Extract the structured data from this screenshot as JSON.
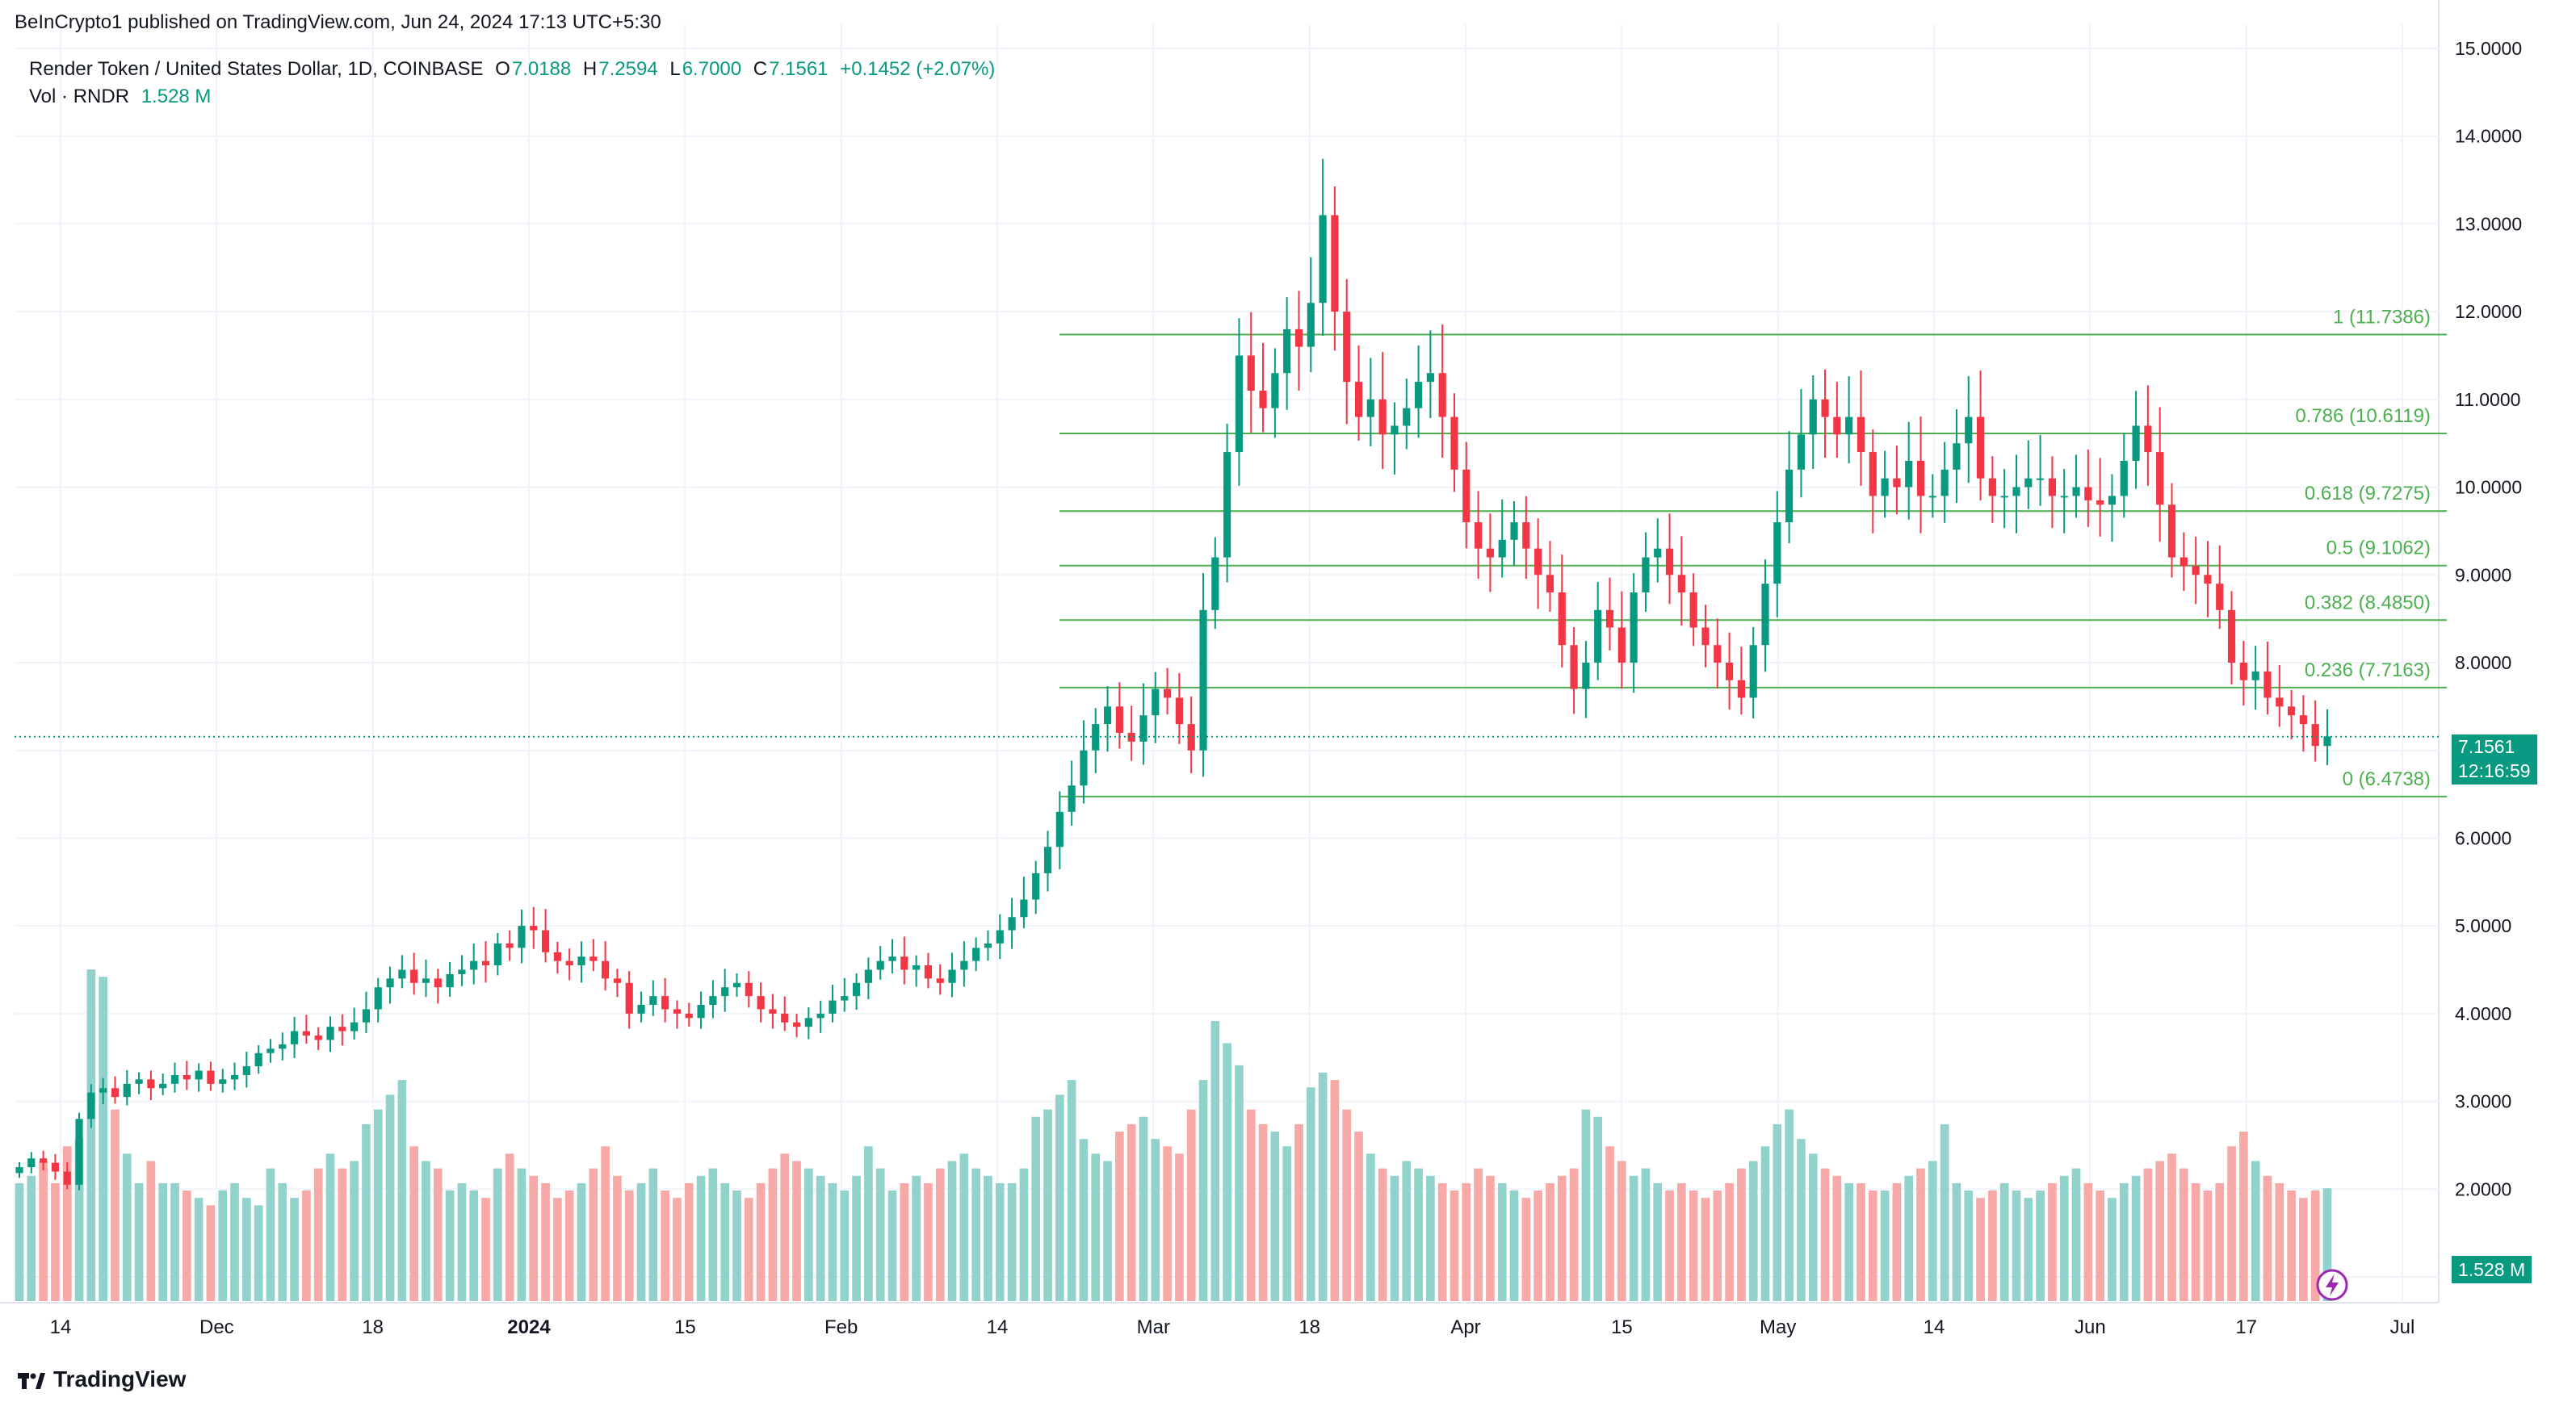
{
  "header": {
    "publish_line": "BeInCrypto1 published on TradingView.com, Jun 24, 2024 17:13 UTC+5:30",
    "symbol": "Render Token / United States Dollar, 1D, COINBASE",
    "open_label": "O",
    "open": "7.0188",
    "high_label": "H",
    "high": "7.2594",
    "low_label": "L",
    "low": "6.7000",
    "close_label": "C",
    "close": "7.1561",
    "change": "+0.1452 (+2.07%)",
    "vol_label": "Vol · RNDR",
    "vol_value": "1.528 M"
  },
  "price_badge": {
    "price": "7.1561",
    "countdown": "12:16:59"
  },
  "volume_badge": "1.528 M",
  "footer": {
    "brand": "TradingView"
  },
  "colors": {
    "up": "#089981",
    "down": "#f23645",
    "fib": "#4caf50",
    "up_vol": "#92d2cc",
    "down_vol": "#f7a9a7"
  },
  "chart_data": {
    "type": "candlestick",
    "y_axis": {
      "ticks": [
        "15.0000",
        "14.0000",
        "13.0000",
        "12.0000",
        "11.0000",
        "10.0000",
        "9.0000",
        "8.0000",
        "7.0000",
        "6.0000",
        "5.0000",
        "4.0000",
        "3.0000",
        "2.0000",
        "1.0000"
      ],
      "ylim": [
        1.0,
        15.0
      ]
    },
    "x_axis": {
      "ticks": [
        "14",
        "Dec",
        "18",
        "2024",
        "15",
        "Feb",
        "14",
        "Mar",
        "18",
        "Apr",
        "15",
        "May",
        "14",
        "Jun",
        "17",
        "Jul"
      ],
      "bold_tick": "2024"
    },
    "fibonacci": [
      {
        "label": "1 (11.7386)",
        "value": 11.7386
      },
      {
        "label": "0.786 (10.6119)",
        "value": 10.6119
      },
      {
        "label": "0.618 (9.7275)",
        "value": 9.7275
      },
      {
        "label": "0.5 (9.1062)",
        "value": 9.1062
      },
      {
        "label": "0.382 (8.4850)",
        "value": 8.485
      },
      {
        "label": "0.236 (7.7163)",
        "value": 7.7163
      },
      {
        "label": "0 (6.4738)",
        "value": 6.4738
      }
    ],
    "last_price": 7.1561,
    "closes": [
      2.25,
      2.35,
      2.3,
      2.2,
      2.05,
      2.8,
      3.1,
      3.15,
      3.05,
      3.2,
      3.25,
      3.15,
      3.2,
      3.3,
      3.25,
      3.35,
      3.2,
      3.25,
      3.3,
      3.4,
      3.55,
      3.6,
      3.65,
      3.8,
      3.75,
      3.7,
      3.85,
      3.8,
      3.9,
      4.05,
      4.3,
      4.4,
      4.5,
      4.35,
      4.4,
      4.3,
      4.45,
      4.5,
      4.6,
      4.55,
      4.8,
      4.75,
      5.0,
      4.95,
      4.7,
      4.6,
      4.55,
      4.65,
      4.6,
      4.4,
      4.35,
      4.0,
      4.1,
      4.2,
      4.05,
      4.0,
      3.95,
      4.1,
      4.2,
      4.3,
      4.35,
      4.2,
      4.05,
      4.0,
      3.9,
      3.85,
      3.95,
      4.0,
      4.15,
      4.2,
      4.35,
      4.5,
      4.6,
      4.65,
      4.5,
      4.55,
      4.4,
      4.35,
      4.5,
      4.6,
      4.75,
      4.8,
      4.95,
      5.1,
      5.3,
      5.6,
      5.9,
      6.3,
      6.6,
      7.0,
      7.3,
      7.5,
      7.2,
      7.1,
      7.4,
      7.7,
      7.6,
      7.3,
      7.0,
      8.6,
      9.2,
      10.4,
      11.5,
      11.1,
      10.9,
      11.3,
      11.8,
      11.6,
      12.1,
      13.1,
      12.0,
      11.2,
      10.8,
      11.0,
      10.6,
      10.7,
      10.9,
      11.2,
      11.3,
      10.8,
      10.2,
      9.6,
      9.3,
      9.2,
      9.4,
      9.6,
      9.3,
      9.0,
      8.8,
      8.2,
      7.7,
      8.0,
      8.6,
      8.4,
      8.0,
      8.8,
      9.2,
      9.3,
      9.0,
      8.8,
      8.4,
      8.2,
      8.0,
      7.8,
      7.6,
      8.2,
      8.9,
      9.6,
      10.2,
      10.6,
      11.0,
      10.8,
      10.6,
      10.8,
      10.4,
      9.9,
      10.1,
      10.0,
      10.3,
      9.9,
      9.9,
      10.2,
      10.5,
      10.8,
      10.1,
      9.9,
      9.9,
      10.0,
      10.1,
      10.1,
      9.9,
      9.9,
      10.0,
      9.85,
      9.8,
      9.9,
      10.3,
      10.7,
      10.4,
      9.8,
      9.2,
      9.1,
      9.0,
      8.9,
      8.6,
      8.0,
      7.8,
      7.9,
      7.6,
      7.5,
      7.4,
      7.3,
      7.05,
      7.16
    ],
    "volumes_M": [
      1.6,
      1.7,
      1.9,
      1.6,
      2.1,
      2.2,
      4.5,
      4.4,
      2.6,
      2.0,
      1.6,
      1.9,
      1.6,
      1.6,
      1.5,
      1.4,
      1.3,
      1.5,
      1.6,
      1.4,
      1.3,
      1.8,
      1.6,
      1.4,
      1.5,
      1.8,
      2.0,
      1.8,
      1.9,
      2.4,
      2.6,
      2.8,
      3.0,
      2.1,
      1.9,
      1.8,
      1.5,
      1.6,
      1.5,
      1.4,
      1.8,
      2.0,
      1.8,
      1.7,
      1.6,
      1.4,
      1.5,
      1.6,
      1.8,
      2.1,
      1.7,
      1.5,
      1.6,
      1.8,
      1.5,
      1.4,
      1.6,
      1.7,
      1.8,
      1.6,
      1.5,
      1.4,
      1.6,
      1.8,
      2.0,
      1.9,
      1.8,
      1.7,
      1.6,
      1.5,
      1.7,
      2.1,
      1.8,
      1.5,
      1.6,
      1.7,
      1.6,
      1.8,
      1.9,
      2.0,
      1.8,
      1.7,
      1.6,
      1.6,
      1.8,
      2.5,
      2.6,
      2.8,
      3.0,
      2.2,
      2.0,
      1.9,
      2.3,
      2.4,
      2.5,
      2.2,
      2.1,
      2.0,
      2.6,
      3.0,
      3.8,
      3.5,
      3.2,
      2.6,
      2.4,
      2.3,
      2.1,
      2.4,
      2.9,
      3.1,
      3.0,
      2.6,
      2.3,
      2.0,
      1.8,
      1.7,
      1.9,
      1.8,
      1.7,
      1.6,
      1.5,
      1.6,
      1.8,
      1.7,
      1.6,
      1.5,
      1.4,
      1.5,
      1.6,
      1.7,
      1.8,
      2.6,
      2.5,
      2.1,
      1.9,
      1.7,
      1.8,
      1.6,
      1.5,
      1.6,
      1.5,
      1.4,
      1.5,
      1.6,
      1.8,
      1.9,
      2.1,
      2.4,
      2.6,
      2.2,
      2.0,
      1.8,
      1.7,
      1.6,
      1.6,
      1.5,
      1.5,
      1.6,
      1.7,
      1.8,
      1.9,
      2.4,
      1.6,
      1.5,
      1.4,
      1.5,
      1.6,
      1.5,
      1.4,
      1.5,
      1.6,
      1.7,
      1.8,
      1.6,
      1.5,
      1.4,
      1.6,
      1.7,
      1.8,
      1.9,
      2.0,
      1.8,
      1.6,
      1.5,
      1.6,
      2.1,
      2.3,
      1.9,
      1.7,
      1.6,
      1.5,
      1.4,
      1.5,
      1.53
    ]
  }
}
